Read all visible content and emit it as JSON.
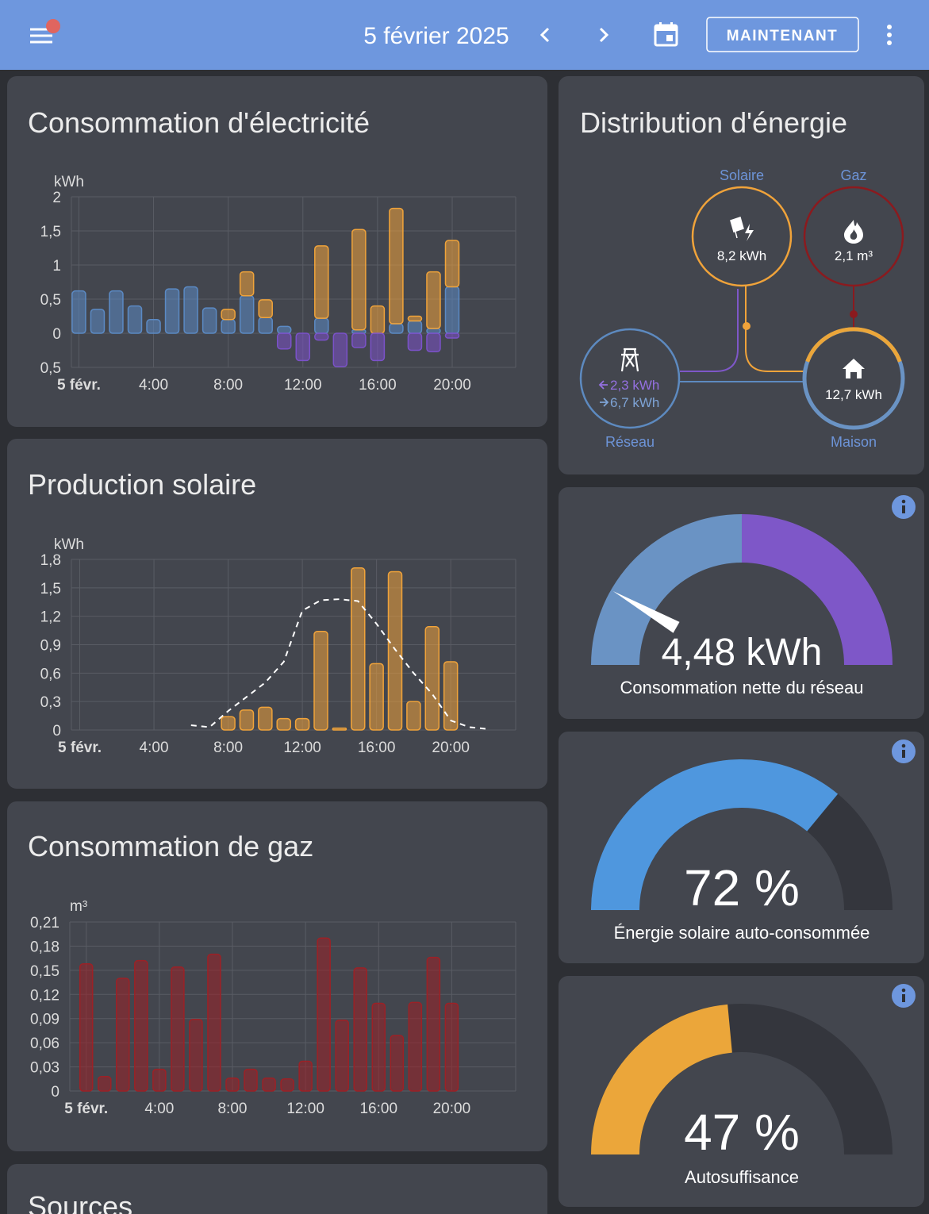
{
  "header": {
    "title": "5 février 2025",
    "button": "MAINTENANT"
  },
  "chart_data": [
    {
      "type": "bar",
      "title": "Consommation d'électricité",
      "ylabel": "kWh",
      "stacked": true,
      "grid": true,
      "x": [
        0,
        1,
        2,
        3,
        4,
        5,
        6,
        7,
        8,
        9,
        10,
        11,
        12,
        13,
        14,
        15,
        16,
        17,
        18,
        19,
        20
      ],
      "xlim": [
        -0.4,
        23.4
      ],
      "xticks": [
        {
          "value": 0,
          "label": "5 févr."
        },
        {
          "value": 4,
          "label": "4:00"
        },
        {
          "value": 8,
          "label": "8:00"
        },
        {
          "value": 12,
          "label": "12:00"
        },
        {
          "value": 16,
          "label": "16:00"
        },
        {
          "value": 20,
          "label": "20:00"
        }
      ],
      "ylim": [
        -0.5,
        2
      ],
      "yticks": [
        2,
        {
          "value": 1.5,
          "label": "1,5"
        },
        1,
        {
          "value": 0.5,
          "label": "0,5"
        },
        0,
        {
          "value": -0.5,
          "label": "0,5"
        }
      ],
      "series": [
        {
          "color": "#5b8ac4",
          "values": [
            0.62,
            0.35,
            0.62,
            0.4,
            0.2,
            0.65,
            0.68,
            0.37,
            0.2,
            0.55,
            0.23,
            0.1,
            0,
            0.22,
            0,
            0.05,
            0,
            0.14,
            0.18,
            0.07,
            0.68
          ]
        },
        {
          "color": "#f0a33a",
          "values": [
            0,
            0,
            0,
            0,
            0,
            0,
            0,
            0,
            0.15,
            0.35,
            0.26,
            0,
            0,
            1.06,
            0,
            1.47,
            0.4,
            1.69,
            0.07,
            0.83,
            0.68
          ]
        },
        {
          "color": "#7b52c9",
          "values": [
            0,
            0,
            0,
            0,
            0,
            0,
            0,
            0,
            0,
            0,
            0,
            -0.23,
            -0.4,
            -0.1,
            -0.49,
            -0.21,
            -0.4,
            0,
            -0.25,
            -0.27,
            -0.07
          ]
        }
      ]
    },
    {
      "type": "bar",
      "title": "Production solaire",
      "ylabel": "kWh",
      "grid": true,
      "x": [
        8,
        9,
        10,
        11,
        12,
        13,
        14,
        15,
        16,
        17,
        18,
        19,
        20
      ],
      "xlim": [
        -0.45,
        23.5
      ],
      "xticks": [
        {
          "value": 0,
          "label": "5 févr."
        },
        {
          "value": 4,
          "label": "4:00"
        },
        {
          "value": 8,
          "label": "8:00"
        },
        {
          "value": 12,
          "label": "12:00"
        },
        {
          "value": 16,
          "label": "16:00"
        },
        {
          "value": 20,
          "label": "20:00"
        }
      ],
      "ylim": [
        0,
        1.8
      ],
      "yticks": [
        {
          "value": 1.8,
          "label": "1,8"
        },
        {
          "value": 1.5,
          "label": "1,5"
        },
        {
          "value": 1.2,
          "label": "1,2"
        },
        {
          "value": 0.9,
          "label": "0,9"
        },
        {
          "value": 0.6,
          "label": "0,6"
        },
        {
          "value": 0.3,
          "label": "0,3"
        },
        0
      ],
      "series": [
        {
          "color": "#f0a33a",
          "values": [
            0.14,
            0.21,
            0.24,
            0.12,
            0.12,
            1.04,
            0.02,
            1.71,
            0.7,
            1.67,
            0.3,
            1.09,
            0.72
          ]
        },
        {
          "type": "line",
          "dash": true,
          "color": "#ffffff",
          "x": [
            6,
            7,
            8,
            9,
            10,
            11,
            12,
            13,
            14,
            15,
            16,
            17,
            18,
            19,
            20,
            21,
            22
          ],
          "values": [
            0.05,
            0.03,
            0.2,
            0.35,
            0.5,
            0.72,
            1.26,
            1.37,
            1.38,
            1.36,
            1.12,
            0.85,
            0.6,
            0.38,
            0.1,
            0.03,
            0.01
          ]
        }
      ]
    },
    {
      "type": "bar",
      "title": "Consommation de gaz",
      "ylabel": "m³",
      "grid": true,
      "x": [
        0,
        1,
        2,
        3,
        4,
        5,
        6,
        7,
        8,
        9,
        10,
        11,
        12,
        13,
        14,
        15,
        16,
        17,
        18,
        19,
        20
      ],
      "xlim": [
        -0.9,
        23.5
      ],
      "xticks": [
        {
          "value": 0,
          "label": "5 févr."
        },
        {
          "value": 4,
          "label": "4:00"
        },
        {
          "value": 8,
          "label": "8:00"
        },
        {
          "value": 12,
          "label": "12:00"
        },
        {
          "value": 16,
          "label": "16:00"
        },
        {
          "value": 20,
          "label": "20:00"
        }
      ],
      "ylim": [
        0,
        0.21
      ],
      "yticks": [
        {
          "value": 0.21,
          "label": "0,21"
        },
        {
          "value": 0.18,
          "label": "0,18"
        },
        {
          "value": 0.15,
          "label": "0,15"
        },
        {
          "value": 0.12,
          "label": "0,12"
        },
        {
          "value": 0.09,
          "label": "0,09"
        },
        {
          "value": 0.06,
          "label": "0,06"
        },
        {
          "value": 0.03,
          "label": "0,03"
        },
        0
      ],
      "series": [
        {
          "color": "#9c2126",
          "values": [
            0.158,
            0.018,
            0.14,
            0.162,
            0.027,
            0.154,
            0.089,
            0.17,
            0.016,
            0.027,
            0.016,
            0.015,
            0.037,
            0.19,
            0.088,
            0.153,
            0.109,
            0.069,
            0.11,
            0.166,
            0.109
          ]
        }
      ]
    }
  ],
  "distribution": {
    "title": "Distribution d'énergie",
    "solar": {
      "label": "Solaire",
      "value": "8,2 kWh"
    },
    "gas": {
      "label": "Gaz",
      "value": "2,1 m³"
    },
    "grid": {
      "label": "Réseau",
      "from": "2,3 kWh",
      "to": "6,7 kWh"
    },
    "home": {
      "label": "Maison",
      "value": "12,7 kWh"
    }
  },
  "gauges": [
    {
      "type": "net",
      "value": 4.48,
      "value_label": "4,48 kWh",
      "label": "Consommation nette du réseau",
      "lim": [
        6.7,
        -6.7
      ],
      "colors": [
        "#6a93c4",
        "#7e57c8"
      ]
    },
    {
      "type": "percent",
      "value": 72,
      "value_label": "72 %",
      "label": "Énergie solaire auto-consommée",
      "lim": [
        0,
        100
      ],
      "color": "#4f97de"
    },
    {
      "type": "percent",
      "value": 47,
      "value_label": "47 %",
      "label": "Autosuffisance",
      "lim": [
        0,
        100
      ],
      "color": "#eba63a"
    }
  ],
  "sources": {
    "title": "Sources"
  }
}
